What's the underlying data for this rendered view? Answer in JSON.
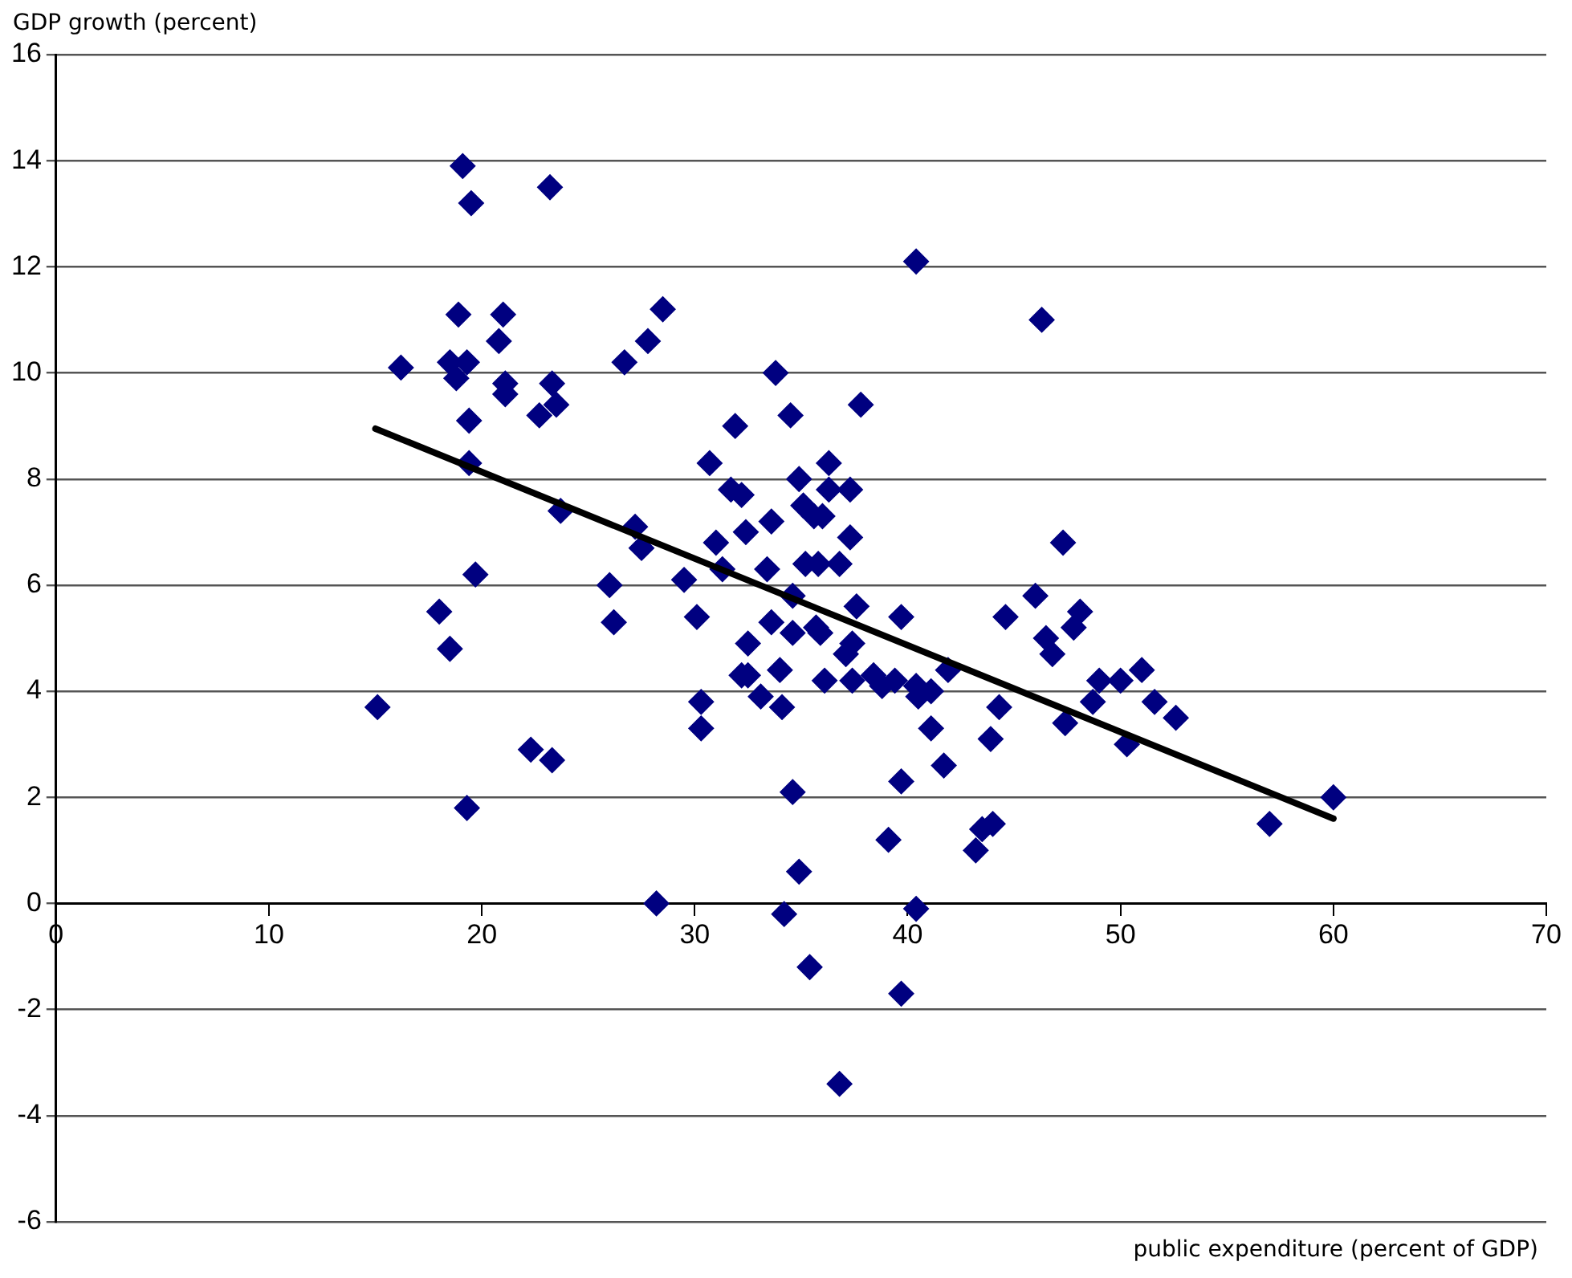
{
  "chart_data": {
    "type": "scatter",
    "xlabel": "public expenditure (percent of GDP)",
    "ylabel": "GDP growth (percent)",
    "xlim": [
      0,
      70
    ],
    "xticks": [
      0,
      10,
      20,
      30,
      40,
      50,
      60,
      70
    ],
    "ylim": [
      -6,
      16
    ],
    "yticks": [
      -6,
      -4,
      -2,
      0,
      2,
      4,
      6,
      8,
      10,
      12,
      14,
      16
    ],
    "grid": "y",
    "legend": false,
    "marker": "diamond",
    "series": [
      {
        "color": "#000080",
        "x": [
          15.1,
          16.2,
          18.0,
          18.5,
          18.5,
          18.9,
          18.8,
          19.1,
          19.3,
          19.4,
          19.5,
          19.4,
          19.7,
          19.3,
          20.8,
          21.0,
          21.1,
          21.1,
          22.3,
          22.7,
          23.2,
          23.3,
          23.5,
          23.3,
          23.7,
          26.0,
          26.2,
          26.7,
          27.2,
          27.5,
          27.8,
          28.2,
          28.5,
          29.5,
          30.1,
          30.3,
          30.3,
          30.7,
          31.0,
          31.3,
          31.7,
          31.9,
          32.2,
          32.4,
          32.2,
          32.5,
          32.5,
          33.1,
          33.4,
          33.6,
          33.8,
          33.6,
          34.1,
          34.0,
          34.2,
          34.5,
          34.6,
          34.6,
          34.6,
          34.9,
          34.9,
          35.1,
          35.2,
          35.4,
          35.6,
          35.7,
          35.8,
          35.9,
          36.0,
          36.1,
          36.3,
          36.3,
          36.8,
          36.8,
          37.1,
          37.3,
          37.3,
          37.4,
          37.4,
          37.6,
          37.8,
          38.4,
          38.8,
          39.1,
          39.4,
          39.7,
          39.7,
          39.7,
          40.4,
          40.4,
          40.4,
          40.5,
          41.1,
          41.1,
          41.7,
          41.9,
          43.2,
          43.5,
          43.9,
          44.0,
          44.3,
          44.6,
          46.0,
          46.3,
          46.5,
          46.8,
          47.3,
          47.4,
          47.8,
          48.1,
          48.7,
          49.0,
          50.0,
          50.3,
          51.0,
          51.6,
          52.6,
          57.0,
          60.0
        ],
        "values": [
          3.7,
          10.1,
          5.5,
          4.8,
          10.2,
          11.1,
          9.9,
          13.9,
          10.2,
          9.1,
          13.2,
          8.3,
          6.2,
          1.8,
          10.6,
          11.1,
          9.8,
          9.6,
          2.9,
          9.2,
          13.5,
          9.8,
          9.4,
          2.7,
          7.4,
          6.0,
          5.3,
          10.2,
          7.1,
          6.7,
          10.6,
          0.0,
          11.2,
          6.1,
          5.4,
          3.8,
          3.3,
          8.3,
          6.8,
          6.3,
          7.8,
          9.0,
          7.7,
          7.0,
          4.3,
          4.9,
          4.3,
          3.9,
          6.3,
          5.3,
          10.0,
          7.2,
          3.7,
          4.4,
          -0.2,
          9.2,
          5.8,
          5.1,
          2.1,
          0.6,
          8.0,
          7.5,
          6.4,
          -1.2,
          7.3,
          5.2,
          6.4,
          5.1,
          7.3,
          4.2,
          8.3,
          7.8,
          -3.4,
          6.4,
          4.7,
          7.8,
          6.9,
          4.9,
          4.2,
          5.6,
          9.4,
          4.3,
          4.1,
          1.2,
          4.2,
          5.4,
          2.3,
          -1.7,
          12.1,
          4.1,
          -0.1,
          3.9,
          4.0,
          3.3,
          2.6,
          4.4,
          1.0,
          1.4,
          3.1,
          1.5,
          3.7,
          5.4,
          5.8,
          11.0,
          5.0,
          4.7,
          6.8,
          3.4,
          5.2,
          5.5,
          3.8,
          4.2,
          4.2,
          3.0,
          4.4,
          3.8,
          3.5,
          1.5,
          2.0
        ]
      },
      {
        "type": "line",
        "color": "#000000",
        "x": [
          15,
          60
        ],
        "values": [
          8.95,
          1.6
        ],
        "marker": "none"
      }
    ]
  }
}
